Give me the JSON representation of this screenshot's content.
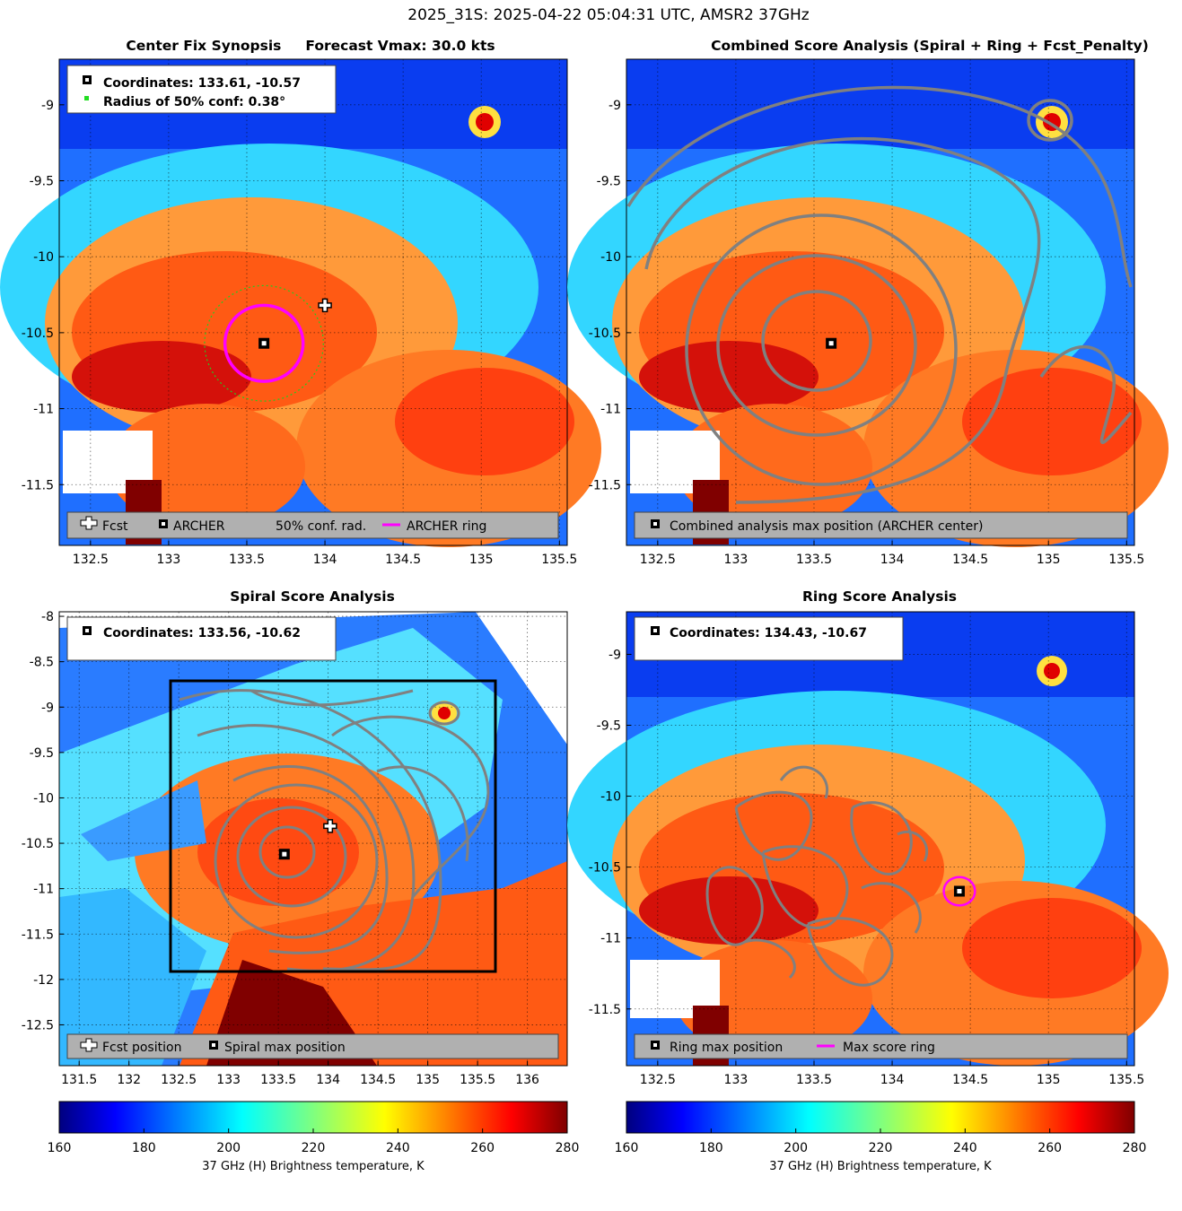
{
  "suptitle": "2025_31S: 2025-04-22 05:04:31 UTC, AMSR2 37GHz",
  "colors": {
    "forecast_marker": "#ffffff",
    "archer_ring": "#ff00ff",
    "contour": "#808080",
    "conf_ring": "#22cc22"
  },
  "chart_data": [
    {
      "type": "heatmap",
      "title": "Center Fix Synopsis     Forecast Vmax: 30.0 kts",
      "xlim": [
        132.3,
        135.55
      ],
      "ylim": [
        -11.9,
        -8.7
      ],
      "xticks": [
        "132.5",
        "133",
        "133.5",
        "134",
        "134.5",
        "135",
        "135.5"
      ],
      "yticks": [
        "-9",
        "-9.5",
        "-10",
        "-10.5",
        "-11",
        "-11.5"
      ],
      "points": {
        "forecast": [
          134.0,
          -10.32
        ],
        "archer": [
          133.61,
          -10.57
        ]
      },
      "archer_ring_radius_deg": 0.25,
      "conf_radius_deg": 0.38,
      "info_lines": [
        "Coordinates: 133.61, -10.57",
        "Radius of 50% conf: 0.38°"
      ],
      "legend": [
        "Fcst",
        "ARCHER",
        "50% conf. rad.",
        "ARCHER ring"
      ]
    },
    {
      "type": "heatmap",
      "title": "Combined Score Analysis (Spiral + Ring + Fcst_Penalty)",
      "xlim": [
        132.3,
        135.55
      ],
      "ylim": [
        -11.9,
        -8.7
      ],
      "xticks": [
        "132.5",
        "133",
        "133.5",
        "134",
        "134.5",
        "135",
        "135.5"
      ],
      "yticks": [
        "-9",
        "-9.5",
        "-10",
        "-10.5",
        "-11",
        "-11.5"
      ],
      "points": {
        "archer": [
          133.61,
          -10.57
        ]
      },
      "legend": [
        "Combined analysis max position (ARCHER center)"
      ]
    },
    {
      "type": "heatmap",
      "title": "Spiral Score Analysis",
      "xlim": [
        131.3,
        136.4
      ],
      "ylim": [
        -12.95,
        -7.95
      ],
      "xticks": [
        "131.5",
        "132",
        "132.5",
        "133",
        "133.5",
        "134",
        "134.5",
        "135",
        "135.5",
        "136"
      ],
      "yticks": [
        "-8",
        "-8.5",
        "-9",
        "-9.5",
        "-10",
        "-10.5",
        "-11",
        "-11.5",
        "-12",
        "-12.5"
      ],
      "points": {
        "forecast": [
          134.02,
          -10.31
        ],
        "spiral_max": [
          133.56,
          -10.62
        ]
      },
      "search_box": {
        "x": [
          132.4,
          135.7
        ],
        "y": [
          -11.92,
          -8.72
        ]
      },
      "info_lines": [
        "Coordinates: 133.56, -10.62"
      ],
      "legend": [
        "Fcst position",
        "Spiral max position"
      ]
    },
    {
      "type": "heatmap",
      "title": "Ring Score Analysis",
      "xlim": [
        132.3,
        135.55
      ],
      "ylim": [
        -11.9,
        -8.7
      ],
      "xticks": [
        "132.5",
        "133",
        "133.5",
        "134",
        "134.5",
        "135",
        "135.5"
      ],
      "yticks": [
        "-9",
        "-9.5",
        "-10",
        "-10.5",
        "-11",
        "-11.5"
      ],
      "points": {
        "ring_max": [
          134.43,
          -10.67
        ]
      },
      "max_ring_radius_deg": 0.1,
      "info_lines": [
        "Coordinates: 134.43, -10.67"
      ],
      "legend": [
        "Ring max position",
        "Max score ring"
      ]
    }
  ],
  "colorbar": {
    "vmin": 160,
    "vmax": 280,
    "ticks": [
      "160",
      "180",
      "200",
      "220",
      "240",
      "260",
      "280"
    ],
    "label": "37 GHz (H) Brightness temperature, K"
  }
}
